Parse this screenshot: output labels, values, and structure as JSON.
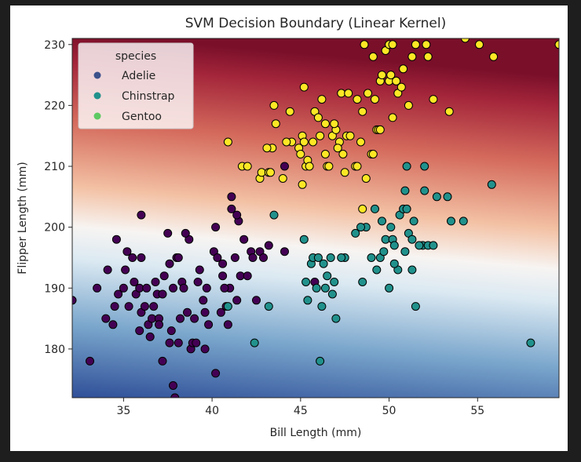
{
  "chart_data": {
    "type": "scatter",
    "title": "SVM Decision Boundary (Linear Kernel)",
    "xlabel": "Bill Length (mm)",
    "ylabel": "Flipper Length (mm)",
    "xlim": [
      32.1,
      59.6
    ],
    "ylim": [
      172,
      231
    ],
    "x_ticks": [
      35,
      40,
      45,
      50,
      55
    ],
    "y_ticks": [
      180,
      190,
      200,
      210,
      220,
      230
    ],
    "grid": false,
    "legend": {
      "title": "species",
      "placement": "top-left",
      "entries": [
        {
          "label": "Adelie",
          "color": "#3b528b"
        },
        {
          "label": "Chinstrap",
          "color": "#21918c"
        },
        {
          "label": "Gentoo",
          "color": "#5ec962"
        }
      ]
    },
    "background": {
      "description": "decision function shading",
      "colors": [
        "#313695",
        "#74add1",
        "#f7f7f7",
        "#f4a582",
        "#b2182b",
        "#67001f"
      ]
    },
    "series": [
      {
        "name": "Adelie",
        "color": "#440154",
        "points": [
          [
            32.1,
            188
          ],
          [
            33.1,
            178
          ],
          [
            33.5,
            190
          ],
          [
            34.0,
            185
          ],
          [
            34.4,
            184
          ],
          [
            34.5,
            187
          ],
          [
            34.6,
            198
          ],
          [
            34.7,
            189
          ],
          [
            35.0,
            190
          ],
          [
            35.1,
            193
          ],
          [
            35.2,
            196
          ],
          [
            35.3,
            187
          ],
          [
            35.5,
            195
          ],
          [
            35.6,
            191
          ],
          [
            35.7,
            189
          ],
          [
            35.9,
            190
          ],
          [
            36.0,
            186
          ],
          [
            36.0,
            195
          ],
          [
            36.2,
            187
          ],
          [
            36.3,
            190
          ],
          [
            36.4,
            184
          ],
          [
            36.5,
            182
          ],
          [
            36.6,
            185
          ],
          [
            36.7,
            187
          ],
          [
            36.8,
            191
          ],
          [
            37.0,
            185
          ],
          [
            37.0,
            184
          ],
          [
            37.2,
            178
          ],
          [
            37.3,
            192
          ],
          [
            37.5,
            199
          ],
          [
            37.6,
            194
          ],
          [
            37.7,
            183
          ],
          [
            37.8,
            190
          ],
          [
            37.8,
            174
          ],
          [
            37.9,
            172
          ],
          [
            38.0,
            195
          ],
          [
            38.1,
            181
          ],
          [
            38.2,
            185
          ],
          [
            38.3,
            191
          ],
          [
            38.6,
            186
          ],
          [
            38.7,
            198
          ],
          [
            38.8,
            180
          ],
          [
            38.9,
            181
          ],
          [
            39.0,
            185
          ],
          [
            39.2,
            191
          ],
          [
            39.3,
            193
          ],
          [
            39.5,
            188
          ],
          [
            39.6,
            186
          ],
          [
            39.7,
            190
          ],
          [
            39.8,
            184
          ],
          [
            40.1,
            196
          ],
          [
            40.2,
            176
          ],
          [
            40.3,
            195
          ],
          [
            40.5,
            186
          ],
          [
            40.6,
            194
          ],
          [
            40.8,
            187
          ],
          [
            40.9,
            184
          ],
          [
            41.0,
            190
          ],
          [
            41.1,
            203
          ],
          [
            41.1,
            205
          ],
          [
            41.3,
            195
          ],
          [
            41.4,
            188
          ],
          [
            41.5,
            201
          ],
          [
            41.6,
            192
          ],
          [
            41.8,
            198
          ],
          [
            42.0,
            192
          ],
          [
            42.2,
            196
          ],
          [
            42.3,
            195
          ],
          [
            42.5,
            188
          ],
          [
            42.7,
            196
          ],
          [
            42.9,
            195
          ],
          [
            43.2,
            197
          ],
          [
            44.1,
            196
          ],
          [
            45.8,
            191
          ],
          [
            36.0,
            202
          ],
          [
            34.1,
            193
          ],
          [
            37.6,
            181
          ],
          [
            38.5,
            199
          ],
          [
            40.6,
            192
          ],
          [
            39.6,
            180
          ],
          [
            44.1,
            210
          ],
          [
            40.2,
            200
          ],
          [
            41.4,
            202
          ],
          [
            36.9,
            189
          ],
          [
            38.1,
            195
          ],
          [
            39.1,
            181
          ],
          [
            35.9,
            183
          ],
          [
            40.7,
            190
          ],
          [
            37.2,
            189
          ],
          [
            38.4,
            190
          ]
        ]
      },
      {
        "name": "Chinstrap",
        "color": "#21918c",
        "points": [
          [
            40.9,
            187
          ],
          [
            42.4,
            181
          ],
          [
            43.2,
            187
          ],
          [
            43.5,
            202
          ],
          [
            45.2,
            198
          ],
          [
            45.3,
            191
          ],
          [
            45.6,
            194
          ],
          [
            45.7,
            195
          ],
          [
            45.9,
            190
          ],
          [
            46.0,
            195
          ],
          [
            46.1,
            178
          ],
          [
            46.2,
            187
          ],
          [
            46.4,
            190
          ],
          [
            46.5,
            192
          ],
          [
            46.7,
            195
          ],
          [
            46.8,
            189
          ],
          [
            46.9,
            191
          ],
          [
            47.0,
            185
          ],
          [
            47.5,
            195
          ],
          [
            48.1,
            199
          ],
          [
            48.5,
            191
          ],
          [
            49.0,
            195
          ],
          [
            49.2,
            203
          ],
          [
            49.3,
            193
          ],
          [
            49.5,
            195
          ],
          [
            49.7,
            196
          ],
          [
            49.8,
            198
          ],
          [
            50.0,
            190
          ],
          [
            50.1,
            200
          ],
          [
            50.2,
            198
          ],
          [
            50.3,
            197
          ],
          [
            50.5,
            193
          ],
          [
            50.6,
            202
          ],
          [
            50.8,
            203
          ],
          [
            50.9,
            196
          ],
          [
            51.0,
            203
          ],
          [
            51.1,
            199
          ],
          [
            51.3,
            193
          ],
          [
            51.4,
            201
          ],
          [
            51.5,
            187
          ],
          [
            51.9,
            197
          ],
          [
            52.0,
            206
          ],
          [
            52.2,
            197
          ],
          [
            52.7,
            205
          ],
          [
            53.3,
            205
          ],
          [
            53.5,
            201
          ],
          [
            54.2,
            201
          ],
          [
            55.8,
            207
          ],
          [
            58.0,
            181
          ],
          [
            51.0,
            210
          ],
          [
            52.0,
            210
          ],
          [
            50.9,
            206
          ],
          [
            48.7,
            200
          ],
          [
            49.6,
            201
          ],
          [
            50.3,
            194
          ],
          [
            51.7,
            197
          ],
          [
            46.3,
            194
          ],
          [
            47.3,
            195
          ],
          [
            45.4,
            188
          ],
          [
            48.4,
            200
          ],
          [
            51.3,
            198
          ],
          [
            52.5,
            197
          ]
        ]
      },
      {
        "name": "Gentoo",
        "color": "#fde725",
        "points": [
          [
            40.9,
            214
          ],
          [
            41.7,
            210
          ],
          [
            42.0,
            210
          ],
          [
            42.7,
            208
          ],
          [
            42.8,
            209
          ],
          [
            43.2,
            209
          ],
          [
            43.3,
            209
          ],
          [
            43.4,
            213
          ],
          [
            43.5,
            220
          ],
          [
            43.6,
            217
          ],
          [
            44.0,
            208
          ],
          [
            44.4,
            219
          ],
          [
            44.5,
            214
          ],
          [
            44.9,
            213
          ],
          [
            45.1,
            215
          ],
          [
            45.2,
            223
          ],
          [
            45.3,
            210
          ],
          [
            45.4,
            211
          ],
          [
            45.5,
            210
          ],
          [
            45.7,
            214
          ],
          [
            45.8,
            219
          ],
          [
            46.1,
            215
          ],
          [
            46.2,
            221
          ],
          [
            46.4,
            212
          ],
          [
            46.5,
            210
          ],
          [
            46.6,
            210
          ],
          [
            46.8,
            215
          ],
          [
            47.0,
            216
          ],
          [
            47.2,
            214
          ],
          [
            47.3,
            222
          ],
          [
            47.5,
            209
          ],
          [
            47.6,
            215
          ],
          [
            47.7,
            222
          ],
          [
            47.8,
            215
          ],
          [
            48.1,
            210
          ],
          [
            48.2,
            221
          ],
          [
            48.4,
            214
          ],
          [
            48.5,
            219
          ],
          [
            48.6,
            230
          ],
          [
            48.7,
            208
          ],
          [
            48.8,
            222
          ],
          [
            49.0,
            212
          ],
          [
            49.1,
            228
          ],
          [
            49.2,
            221
          ],
          [
            49.3,
            216
          ],
          [
            49.4,
            216
          ],
          [
            49.5,
            224
          ],
          [
            49.6,
            225
          ],
          [
            49.8,
            229
          ],
          [
            50.0,
            224
          ],
          [
            50.1,
            225
          ],
          [
            50.2,
            218
          ],
          [
            50.4,
            224
          ],
          [
            50.5,
            222
          ],
          [
            50.7,
            223
          ],
          [
            50.8,
            226
          ],
          [
            51.1,
            220
          ],
          [
            51.3,
            228
          ],
          [
            51.5,
            230
          ],
          [
            52.1,
            230
          ],
          [
            52.2,
            228
          ],
          [
            52.5,
            221
          ],
          [
            53.4,
            219
          ],
          [
            54.3,
            231
          ],
          [
            55.1,
            230
          ],
          [
            55.9,
            228
          ],
          [
            59.6,
            230
          ],
          [
            45.1,
            207
          ],
          [
            46.9,
            217
          ],
          [
            47.4,
            212
          ],
          [
            48.2,
            210
          ],
          [
            49.5,
            216
          ],
          [
            45.0,
            212
          ],
          [
            46.0,
            218
          ],
          [
            44.2,
            214
          ],
          [
            43.1,
            213
          ],
          [
            49.1,
            212
          ],
          [
            50.0,
            230
          ],
          [
            50.2,
            230
          ],
          [
            48.5,
            203
          ],
          [
            47.1,
            213
          ],
          [
            46.4,
            217
          ],
          [
            45.2,
            214
          ]
        ]
      }
    ]
  }
}
